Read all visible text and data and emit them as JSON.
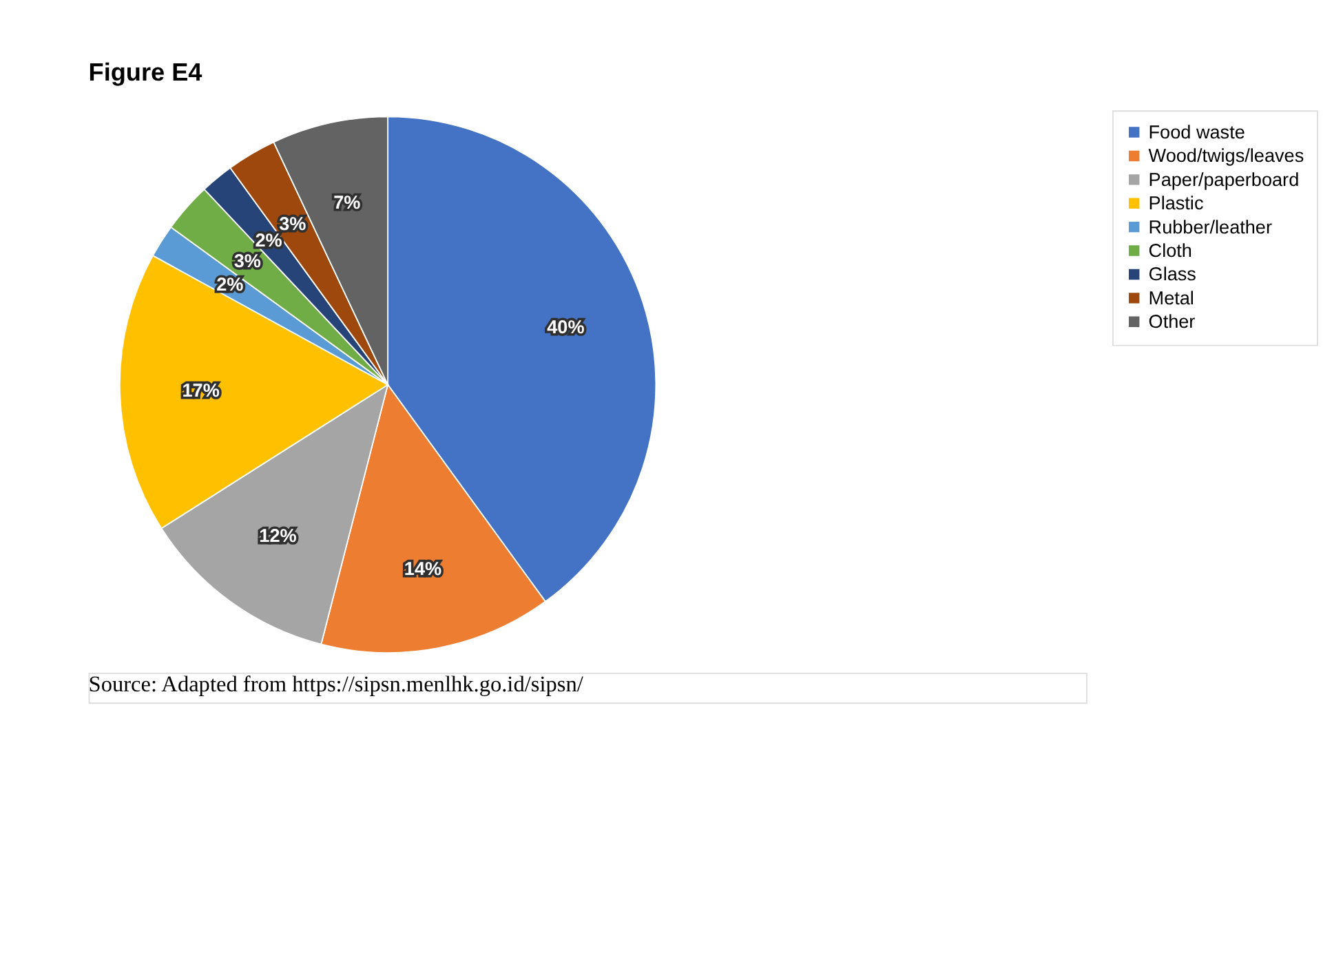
{
  "chart_data": {
    "type": "pie",
    "title": "Figure E4",
    "categories": [
      "Food waste",
      "Wood/twigs/leaves",
      "Paper/paperboard",
      "Plastic",
      "Rubber/leather",
      "Cloth",
      "Glass",
      "Metal",
      "Other"
    ],
    "values": [
      40,
      14,
      12,
      17,
      2,
      3,
      2,
      3,
      7
    ],
    "colors": [
      "#4472c4",
      "#ed7d31",
      "#a5a5a5",
      "#ffc000",
      "#5b9bd5",
      "#70ad47",
      "#264478",
      "#9e480e",
      "#636363"
    ],
    "value_labels": [
      "40%",
      "14%",
      "12%",
      "17%",
      "2%",
      "3%",
      "2%",
      "3%",
      "7%"
    ],
    "legend": "right",
    "annotations": [
      "Source: Adapted from https://sipsn.menlhk.go.id/sipsn/"
    ]
  }
}
